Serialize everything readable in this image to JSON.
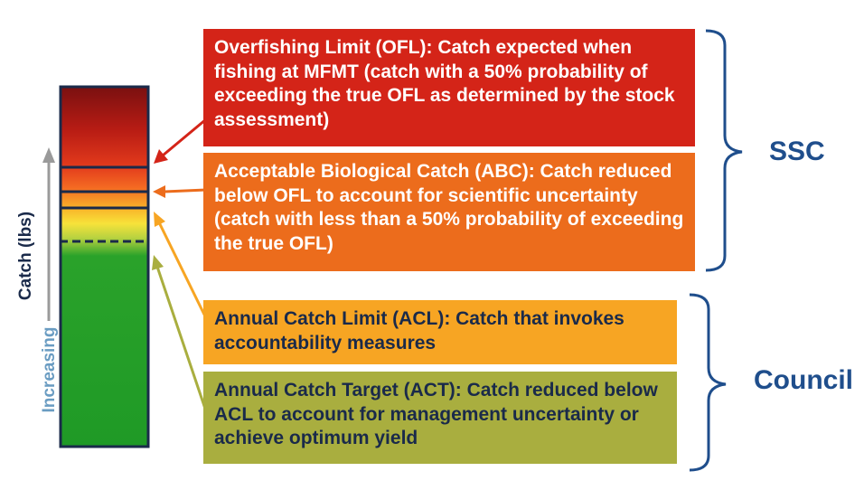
{
  "boxes": {
    "ofl": {
      "text": "Overfishing Limit (OFL): Catch expected when fishing at MFMT (catch with a 50% probability of exceeding the true OFL as determined by the stock assessment)",
      "color": "#d42418"
    },
    "abc": {
      "text": "Acceptable Biological Catch (ABC): Catch reduced below OFL to account for scientific uncertainty (catch with less than a 50% probability of exceeding the true OFL)",
      "color": "#ec6c1c"
    },
    "acl": {
      "text": "Annual Catch Limit (ACL): Catch that invokes accountability measures",
      "color": "#f7a523"
    },
    "act": {
      "text": "Annual Catch Target (ACT): Catch reduced below ACL to account for management uncertainty or achieve optimum yield",
      "color": "#a9ae3f"
    }
  },
  "groups": {
    "ssc": "SSC",
    "council": "Council"
  },
  "axis": {
    "catch": "Catch (lbs)",
    "increasing": "Increasing"
  },
  "colors": {
    "bracket": "#1f4e8c",
    "bar_outline": "#1a2a4a"
  }
}
